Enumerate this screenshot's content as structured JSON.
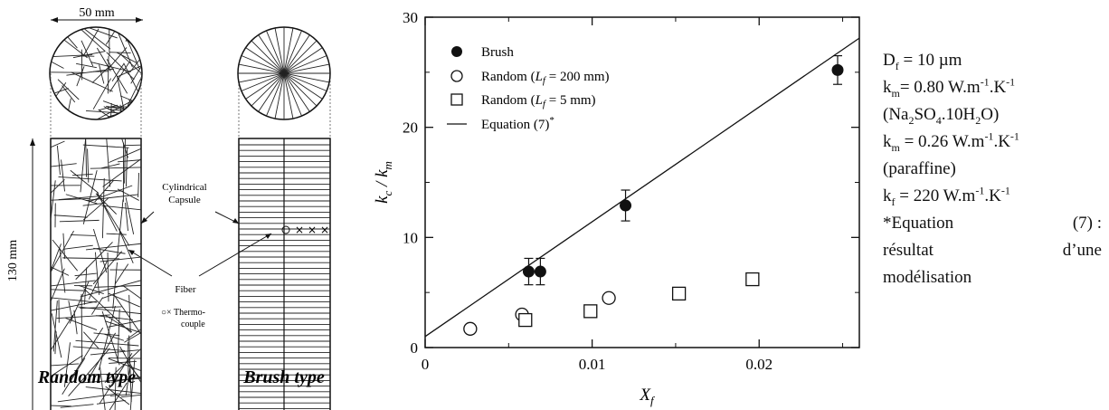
{
  "schematic": {
    "width_label": "50 mm",
    "height_label": "130 mm",
    "capsule_label_line1": "Cylindrical",
    "capsule_label_line2": "Capsule",
    "fiber_label": "Fiber",
    "thermo_label_line1": "○× Thermo-",
    "thermo_label_line2": "couple",
    "random_caption": "Random type",
    "brush_caption": "Brush type"
  },
  "chart_data": {
    "type": "scatter",
    "xlabel": "X",
    "xlabel_sub": "f",
    "ylabel_num": "k",
    "ylabel_num_sub": "c",
    "ylabel_sep": " / ",
    "ylabel_den": "k",
    "ylabel_den_sub": "m",
    "xlim": [
      0,
      0.026
    ],
    "ylim": [
      0,
      30
    ],
    "xticks": [
      0,
      0.01,
      0.02
    ],
    "xtick_labels": [
      "0",
      "0.01",
      "0.02"
    ],
    "yticks": [
      0,
      10,
      20,
      30
    ],
    "ytick_labels": [
      "0",
      "10",
      "20",
      "30"
    ],
    "legend_position": "top-left",
    "series": [
      {
        "name": "Brush",
        "marker": "filled-circle",
        "points": [
          {
            "x": 0.0062,
            "y": 6.9,
            "err": 1.2
          },
          {
            "x": 0.0069,
            "y": 6.9,
            "err": 1.2
          },
          {
            "x": 0.012,
            "y": 12.9,
            "err": 1.4
          },
          {
            "x": 0.0247,
            "y": 25.2,
            "err": 1.3
          }
        ]
      },
      {
        "name_prefix": "Random  (",
        "name_var": "L",
        "name_var_sub": "f",
        "name_suffix": " = 200 mm)",
        "marker": "open-circle",
        "points": [
          {
            "x": 0.0027,
            "y": 1.7
          },
          {
            "x": 0.0058,
            "y": 3.0
          },
          {
            "x": 0.011,
            "y": 4.5
          }
        ]
      },
      {
        "name_prefix": "Random  (",
        "name_var": "L",
        "name_var_sub": "f",
        "name_suffix": " = 5 mm)",
        "marker": "open-square",
        "points": [
          {
            "x": 0.006,
            "y": 2.5
          },
          {
            "x": 0.0099,
            "y": 3.3
          },
          {
            "x": 0.0152,
            "y": 4.9
          },
          {
            "x": 0.0196,
            "y": 6.2
          }
        ]
      },
      {
        "name_prefix": "Equation (7)",
        "name_sup": "*",
        "marker": "line",
        "points": [
          {
            "x": 0,
            "y": 1.0
          },
          {
            "x": 0.026,
            "y": 28.1
          }
        ]
      }
    ]
  },
  "notes": {
    "df_a": "D",
    "df_sub": "f",
    "df_b": " = 10  µm",
    "km1_a": "k",
    "km1_sub": "m",
    "km1_b": "= 0.80 W.m",
    "km1_sup1": "-1",
    "km1_c": ".K",
    "km1_sup2": "-1",
    "salt_a": "(Na",
    "salt_sub1": "2",
    "salt_b": "SO",
    "salt_sub2": "4",
    "salt_c": ".10H",
    "salt_sub3": "2",
    "salt_d": "O)",
    "km2_a": "k",
    "km2_sub": "m",
    "km2_b": " = 0.26 W.m",
    "km2_sup1": "-1",
    "km2_c": ".K",
    "km2_sup2": "-1",
    "paraffine": "(paraffine)",
    "kf_a": "k",
    "kf_sub": "f",
    "kf_b": " = 220 W.m",
    "kf_sup1": "-1",
    "kf_c": ".K",
    "kf_sup2": "-1",
    "eq_l": "*Equation",
    "eq_r": "(7) :",
    "res_l": "résultat",
    "res_r": "d’une",
    "model": "modélisation"
  }
}
